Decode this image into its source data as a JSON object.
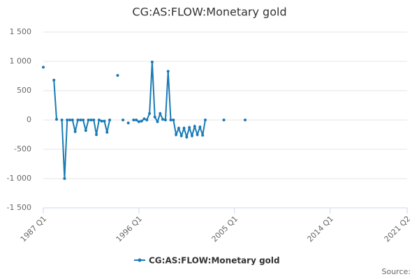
{
  "chart_data": {
    "type": "line",
    "title": "CG:AS:FLOW:Monetary gold",
    "source": "Source:",
    "x": [
      1987,
      1987.25,
      1988,
      1988.25,
      1988.5,
      1988.75,
      1989,
      1989.25,
      1989.5,
      1989.75,
      1990,
      1990.25,
      1990.5,
      1990.75,
      1991,
      1991.25,
      1991.5,
      1991.75,
      1992,
      1992.25,
      1992.5,
      1992.75,
      1993,
      1993.25,
      1993.5,
      1994,
      1994.25,
      1994.5,
      1994.75,
      1995,
      1995.25,
      1995.5,
      1995.75,
      1996,
      1996.25,
      1996.5,
      1996.75,
      1997,
      1997.25,
      1997.5,
      1997.75,
      1998,
      1998.25,
      1998.5,
      1998.75,
      1999,
      1999.25,
      1999.5,
      1999.75,
      2000,
      2000.25,
      2000.5,
      2000.75,
      2001,
      2001.25,
      2001.5,
      2001.75,
      2002,
      2002.25,
      2002.5,
      2004,
      2004.25,
      2006
    ],
    "series": [
      {
        "name": "CG:AS:FLOW:Monetary gold",
        "color": "#1a7ab5",
        "values": [
          900,
          null,
          680,
          10,
          null,
          0,
          -1000,
          0,
          0,
          0,
          -200,
          0,
          0,
          0,
          -180,
          0,
          0,
          0,
          -250,
          0,
          -20,
          -20,
          -210,
          0,
          null,
          760,
          null,
          0,
          null,
          -50,
          null,
          0,
          0,
          -30,
          -20,
          20,
          0,
          110,
          990,
          50,
          -30,
          110,
          10,
          0,
          830,
          0,
          0,
          -250,
          -140,
          -270,
          -140,
          -290,
          -130,
          -270,
          -110,
          -250,
          -120,
          -260,
          0,
          null,
          0,
          null,
          0
        ]
      }
    ],
    "xlim": [
      1987,
      2021.25
    ],
    "xticks": [
      {
        "value": 1987,
        "label": "1987 Q1"
      },
      {
        "value": 1996,
        "label": "1996 Q1"
      },
      {
        "value": 2005,
        "label": "2005 Q1"
      },
      {
        "value": 2014,
        "label": "2014 Q1"
      },
      {
        "value": 2021.25,
        "label": "2021 Q2"
      }
    ],
    "ylim": [
      -1500,
      1500
    ],
    "yticks": [
      {
        "value": -1500,
        "label": "-1 500"
      },
      {
        "value": -1000,
        "label": "-1 000"
      },
      -500,
      0,
      500,
      {
        "value": 1000,
        "label": "1 000"
      },
      {
        "value": 1500,
        "label": "1 500"
      }
    ],
    "grid": true
  }
}
